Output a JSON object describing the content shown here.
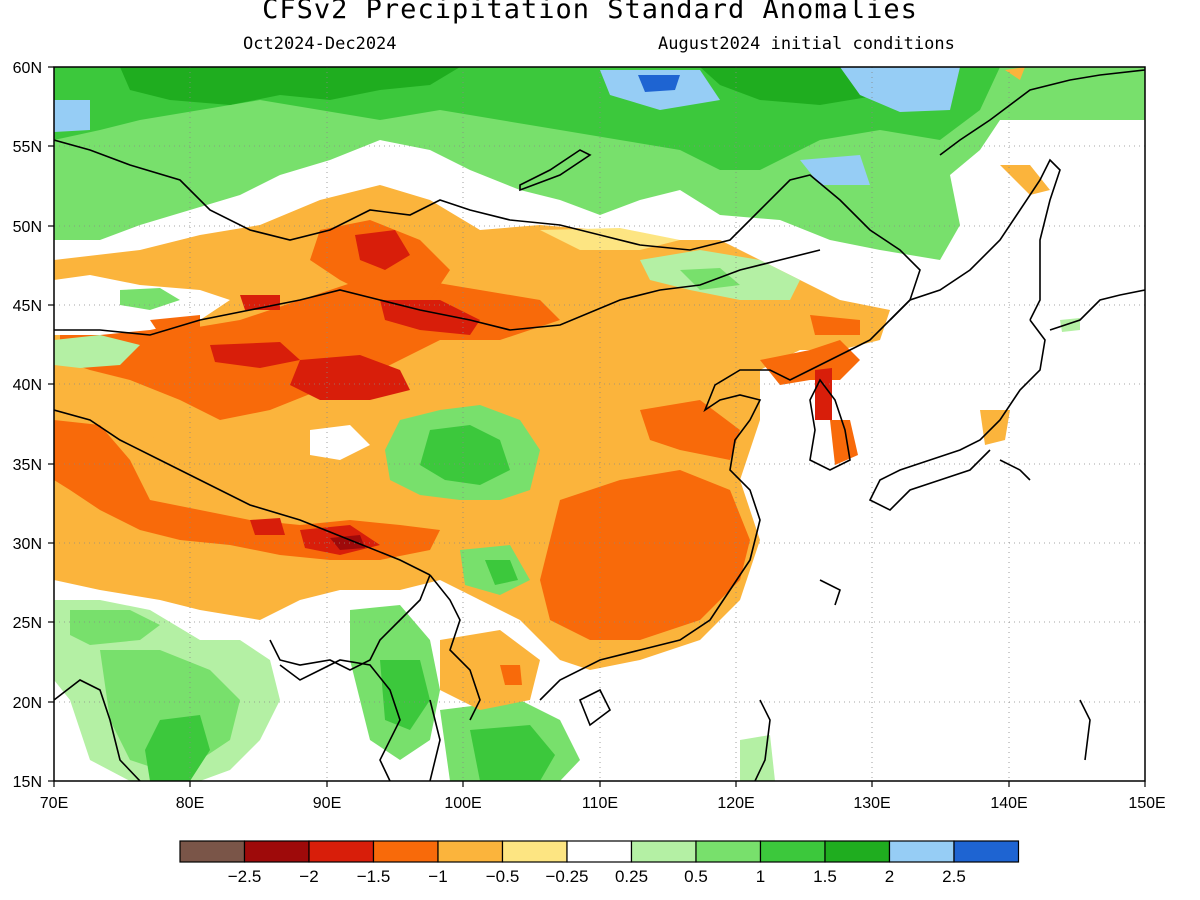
{
  "header": {
    "title": "CFSv2 Precipitation Standard Anomalies",
    "period": "Oct2024-Dec2024",
    "init": "August2024 initial conditions"
  },
  "map": {
    "lon_range": [
      70,
      150
    ],
    "lat_range": [
      15,
      60
    ],
    "lon_ticks": [
      "70E",
      "80E",
      "90E",
      "100E",
      "110E",
      "120E",
      "130E",
      "140E",
      "150E"
    ],
    "lat_ticks": [
      "60N",
      "55N",
      "50N",
      "45N",
      "40N",
      "35N",
      "30N",
      "25N",
      "20N",
      "15N"
    ],
    "gridlines": true
  },
  "colorbar": {
    "colors": [
      "#7a5548",
      "#9e0a0a",
      "#d81e0a",
      "#f86a0a",
      "#fbb43c",
      "#fde582",
      "#ffffff",
      "#b4f0a4",
      "#78e06c",
      "#3cc83c",
      "#1fad1f",
      "#96cdf5",
      "#1e64d2"
    ],
    "labels": [
      "-2.5",
      "-2",
      "-1.5",
      "-1",
      "-0.5",
      "-0.25",
      "0.25",
      "0.5",
      "1",
      "1.5",
      "2",
      "2.5"
    ]
  }
}
